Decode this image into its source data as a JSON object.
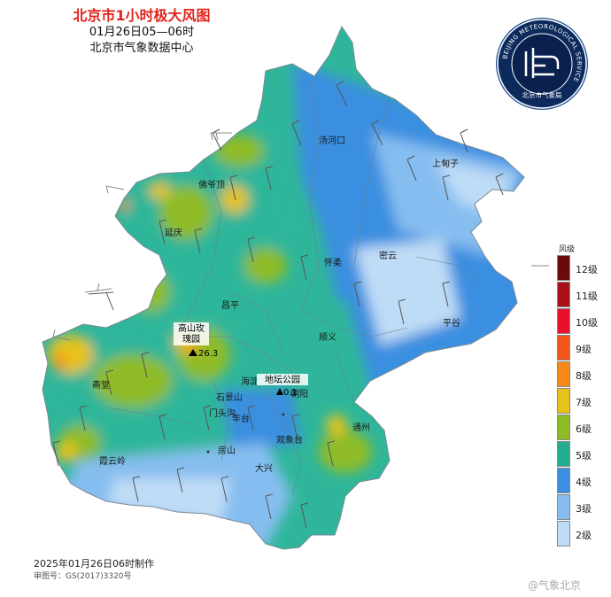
{
  "title": {
    "main": "北京市1小时极大风图",
    "time_range": "01月26日05—06时",
    "center": "北京市气象数据中心"
  },
  "logo": {
    "ring_text": "BEIJING METEOROLOGICAL SERVICE",
    "name_text": "北京市气象局",
    "ring_color": "#1d4f93",
    "bg_color": "#0d2a5c"
  },
  "legend": {
    "title": "风级",
    "items": [
      {
        "label": "12级",
        "color": "#6a0a0a"
      },
      {
        "label": "11级",
        "color": "#a8101a"
      },
      {
        "label": "10级",
        "color": "#e8102a"
      },
      {
        "label": "9级",
        "color": "#f0561c"
      },
      {
        "label": "8级",
        "color": "#f78a1a"
      },
      {
        "label": "7级",
        "color": "#e6c21a"
      },
      {
        "label": "6级",
        "color": "#8fbc26"
      },
      {
        "label": "5级",
        "color": "#22ad90"
      },
      {
        "label": "4级",
        "color": "#3b8fe0"
      },
      {
        "label": "3级",
        "color": "#86bdf0"
      },
      {
        "label": "2级",
        "color": "#bfdcf6"
      }
    ]
  },
  "places": [
    {
      "name": "汤河口"
    },
    {
      "name": "上甸子"
    },
    {
      "name": "佛爷顶"
    },
    {
      "name": "延庆"
    },
    {
      "name": "怀柔"
    },
    {
      "name": "密云"
    },
    {
      "name": "昌平"
    },
    {
      "name": "顺义"
    },
    {
      "name": "平谷"
    },
    {
      "name": "海淀"
    },
    {
      "name": "朝阳"
    },
    {
      "name": "斋堂"
    },
    {
      "name": "石景山"
    },
    {
      "name": "门头沟"
    },
    {
      "name": "丰台"
    },
    {
      "name": "通州"
    },
    {
      "name": "房山"
    },
    {
      "name": "观象台"
    },
    {
      "name": "大兴"
    },
    {
      "name": "霞云岭"
    }
  ],
  "stations": [
    {
      "name_line1": "高山玫",
      "name_line2": "瑰园",
      "value": "26.3"
    },
    {
      "name_line1": "地坛公园",
      "value": "0.1"
    }
  ],
  "footer": {
    "made": "2025年01月26日06时制作",
    "approval": "审图号：GS(2017)3320号"
  },
  "watermark": "@气象北京"
}
